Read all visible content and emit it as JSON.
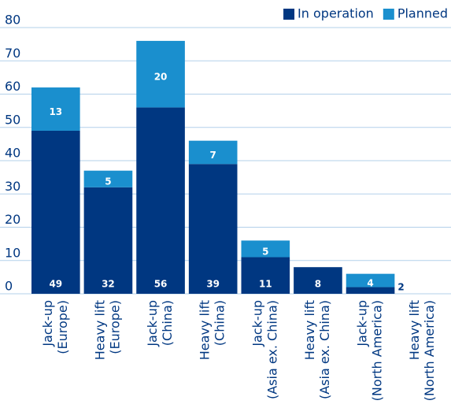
{
  "chart_data": {
    "type": "stacked_bar",
    "categories": [
      [
        "Jack-up",
        "(Europe)"
      ],
      [
        "Heavy lift",
        "(Europe)"
      ],
      [
        "Jack-up",
        "(China)"
      ],
      [
        "Heavy lift",
        "(China)"
      ],
      [
        "Jack-up",
        "(Asia ex. China)"
      ],
      [
        "Heavy lift",
        "(Asia ex. China)"
      ],
      [
        "Jack-up",
        "(North America)"
      ],
      [
        "Heavy lift",
        "(North America)"
      ]
    ],
    "series": [
      {
        "name": "In operation",
        "color": "#003781",
        "values": [
          49,
          32,
          56,
          39,
          11,
          8,
          2,
          0
        ]
      },
      {
        "name": "Planned",
        "color": "#1a8fce",
        "values": [
          13,
          5,
          20,
          7,
          5,
          0,
          4,
          0
        ]
      }
    ],
    "ylim": [
      0,
      80
    ],
    "yticks": [
      0,
      10,
      20,
      30,
      40,
      50,
      60,
      70,
      80
    ],
    "grid": true,
    "legend": "top-right"
  }
}
